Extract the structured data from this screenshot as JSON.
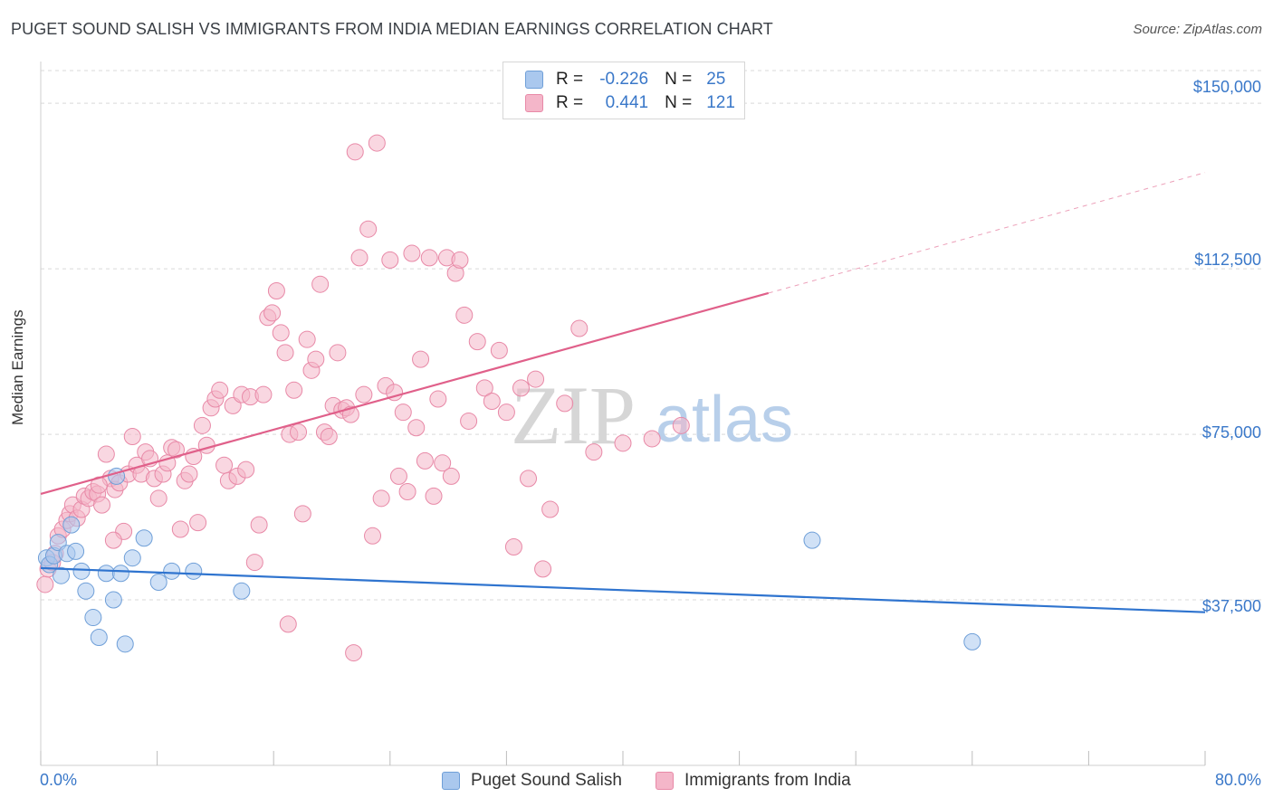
{
  "title": "PUGET SOUND SALISH VS IMMIGRANTS FROM INDIA MEDIAN EARNINGS CORRELATION CHART",
  "source": "Source: ZipAtlas.com",
  "watermark": {
    "zip": "ZIP",
    "atlas": "atlas"
  },
  "legend": {
    "rows": [
      {
        "r_label": "R =",
        "r_value": "-0.226",
        "n_label": "N =",
        "n_value": "25"
      },
      {
        "r_label": "R =",
        "r_value": "0.441",
        "n_label": "N =",
        "n_value": "121"
      }
    ]
  },
  "colors": {
    "blue_fill": "#aac8ee",
    "blue_stroke": "#6f9fd8",
    "blue_line": "#2f74cf",
    "pink_fill": "#f4b6c9",
    "pink_stroke": "#e889a7",
    "pink_line": "#e0608a",
    "tick_text": "#3a78c9",
    "grid": "#d9d9d9"
  },
  "chart_data": {
    "type": "scatter",
    "title": "PUGET SOUND SALISH VS IMMIGRANTS FROM INDIA MEDIAN EARNINGS CORRELATION CHART",
    "xlabel": "",
    "ylabel": "Median Earnings",
    "xlim": [
      0,
      80
    ],
    "ylim": [
      0,
      157000
    ],
    "x_tick_labels": [
      "0.0%",
      "80.0%"
    ],
    "y_ticks": [
      37500,
      75000,
      112500,
      150000
    ],
    "y_tick_labels": [
      "$37,500",
      "$75,000",
      "$112,500",
      "$150,000"
    ],
    "series": [
      {
        "name": "Puget Sound Salish",
        "color": "#aac8ee",
        "r": -0.226,
        "n": 25,
        "trend": {
          "x": [
            0,
            80
          ],
          "y": [
            44700,
            34700
          ]
        },
        "points": [
          [
            0.4,
            47000
          ],
          [
            0.6,
            45500
          ],
          [
            0.9,
            47500
          ],
          [
            1.2,
            50500
          ],
          [
            1.4,
            43000
          ],
          [
            1.8,
            48000
          ],
          [
            2.1,
            54500
          ],
          [
            2.4,
            48500
          ],
          [
            2.8,
            44000
          ],
          [
            3.1,
            39500
          ],
          [
            3.6,
            33500
          ],
          [
            4.0,
            29000
          ],
          [
            4.5,
            43500
          ],
          [
            5.0,
            37500
          ],
          [
            5.5,
            43500
          ],
          [
            5.8,
            27500
          ],
          [
            6.3,
            47000
          ],
          [
            7.1,
            51500
          ],
          [
            8.1,
            41500
          ],
          [
            9.0,
            44000
          ],
          [
            10.5,
            44000
          ],
          [
            13.8,
            39500
          ],
          [
            5.2,
            65500
          ],
          [
            53.0,
            51000
          ],
          [
            64.0,
            28000
          ]
        ]
      },
      {
        "name": "Immigrants from India",
        "color": "#f4b6c9",
        "r": 0.441,
        "n": 121,
        "trend": {
          "x": [
            0,
            50
          ],
          "y": [
            61500,
            107000
          ]
        },
        "trend_dashed": {
          "x": [
            50,
            80
          ],
          "y": [
            107000,
            134300
          ]
        },
        "points": [
          [
            0.3,
            41000
          ],
          [
            0.5,
            44500
          ],
          [
            0.8,
            46000
          ],
          [
            1.0,
            48000
          ],
          [
            1.2,
            52000
          ],
          [
            1.5,
            53500
          ],
          [
            1.8,
            55500
          ],
          [
            2.0,
            57000
          ],
          [
            2.2,
            59000
          ],
          [
            2.5,
            56000
          ],
          [
            2.8,
            58000
          ],
          [
            3.0,
            61000
          ],
          [
            3.3,
            60500
          ],
          [
            3.6,
            62000
          ],
          [
            3.9,
            61500
          ],
          [
            4.2,
            59000
          ],
          [
            4.5,
            70500
          ],
          [
            4.8,
            65000
          ],
          [
            5.1,
            62500
          ],
          [
            5.4,
            64000
          ],
          [
            5.7,
            53000
          ],
          [
            6.0,
            66000
          ],
          [
            6.3,
            74500
          ],
          [
            6.6,
            68000
          ],
          [
            6.9,
            66000
          ],
          [
            7.2,
            71000
          ],
          [
            7.5,
            69500
          ],
          [
            7.8,
            65000
          ],
          [
            8.1,
            60500
          ],
          [
            8.4,
            66000
          ],
          [
            8.7,
            68500
          ],
          [
            9.0,
            72000
          ],
          [
            9.3,
            71500
          ],
          [
            9.6,
            53500
          ],
          [
            9.9,
            64500
          ],
          [
            10.2,
            66000
          ],
          [
            10.5,
            70000
          ],
          [
            10.8,
            55000
          ],
          [
            11.1,
            77000
          ],
          [
            11.4,
            72500
          ],
          [
            11.7,
            81000
          ],
          [
            12.0,
            83000
          ],
          [
            12.3,
            85000
          ],
          [
            12.6,
            68000
          ],
          [
            12.9,
            64500
          ],
          [
            13.2,
            81500
          ],
          [
            13.5,
            65500
          ],
          [
            13.8,
            84000
          ],
          [
            14.1,
            67000
          ],
          [
            14.4,
            83500
          ],
          [
            14.7,
            46000
          ],
          [
            15.0,
            54500
          ],
          [
            15.3,
            84000
          ],
          [
            15.6,
            101500
          ],
          [
            15.9,
            102500
          ],
          [
            16.2,
            107500
          ],
          [
            16.5,
            98000
          ],
          [
            16.8,
            93500
          ],
          [
            17.1,
            75000
          ],
          [
            17.4,
            85000
          ],
          [
            17.7,
            75500
          ],
          [
            18.0,
            57000
          ],
          [
            18.3,
            96500
          ],
          [
            18.6,
            89500
          ],
          [
            18.9,
            92000
          ],
          [
            19.2,
            109000
          ],
          [
            19.5,
            75500
          ],
          [
            19.8,
            74500
          ],
          [
            20.1,
            81500
          ],
          [
            20.4,
            93500
          ],
          [
            20.7,
            80500
          ],
          [
            21.0,
            81000
          ],
          [
            21.3,
            79500
          ],
          [
            21.6,
            139000
          ],
          [
            21.9,
            115000
          ],
          [
            22.2,
            84000
          ],
          [
            22.5,
            121500
          ],
          [
            22.8,
            52000
          ],
          [
            23.1,
            141000
          ],
          [
            23.4,
            60500
          ],
          [
            23.7,
            86000
          ],
          [
            24.0,
            114500
          ],
          [
            24.3,
            84500
          ],
          [
            24.6,
            65500
          ],
          [
            24.9,
            80000
          ],
          [
            25.2,
            62000
          ],
          [
            25.5,
            116000
          ],
          [
            25.8,
            76500
          ],
          [
            26.1,
            92000
          ],
          [
            26.4,
            69000
          ],
          [
            26.7,
            115000
          ],
          [
            27.0,
            61000
          ],
          [
            27.3,
            83000
          ],
          [
            27.6,
            68500
          ],
          [
            27.9,
            115000
          ],
          [
            28.2,
            65500
          ],
          [
            28.5,
            111500
          ],
          [
            28.8,
            114500
          ],
          [
            29.1,
            102000
          ],
          [
            29.4,
            78000
          ],
          [
            30.0,
            96000
          ],
          [
            30.5,
            85500
          ],
          [
            31.0,
            82500
          ],
          [
            31.5,
            94000
          ],
          [
            32.0,
            80000
          ],
          [
            32.5,
            49500
          ],
          [
            33.0,
            85500
          ],
          [
            33.5,
            65000
          ],
          [
            34.0,
            87500
          ],
          [
            34.5,
            44500
          ],
          [
            35.0,
            58000
          ],
          [
            36.0,
            82000
          ],
          [
            37.0,
            99000
          ],
          [
            38.0,
            71000
          ],
          [
            40.0,
            73000
          ],
          [
            42.0,
            74000
          ],
          [
            44.0,
            77000
          ],
          [
            5.0,
            51000
          ],
          [
            17.0,
            32000
          ],
          [
            21.5,
            25500
          ],
          [
            4.0,
            63500
          ]
        ]
      }
    ]
  }
}
